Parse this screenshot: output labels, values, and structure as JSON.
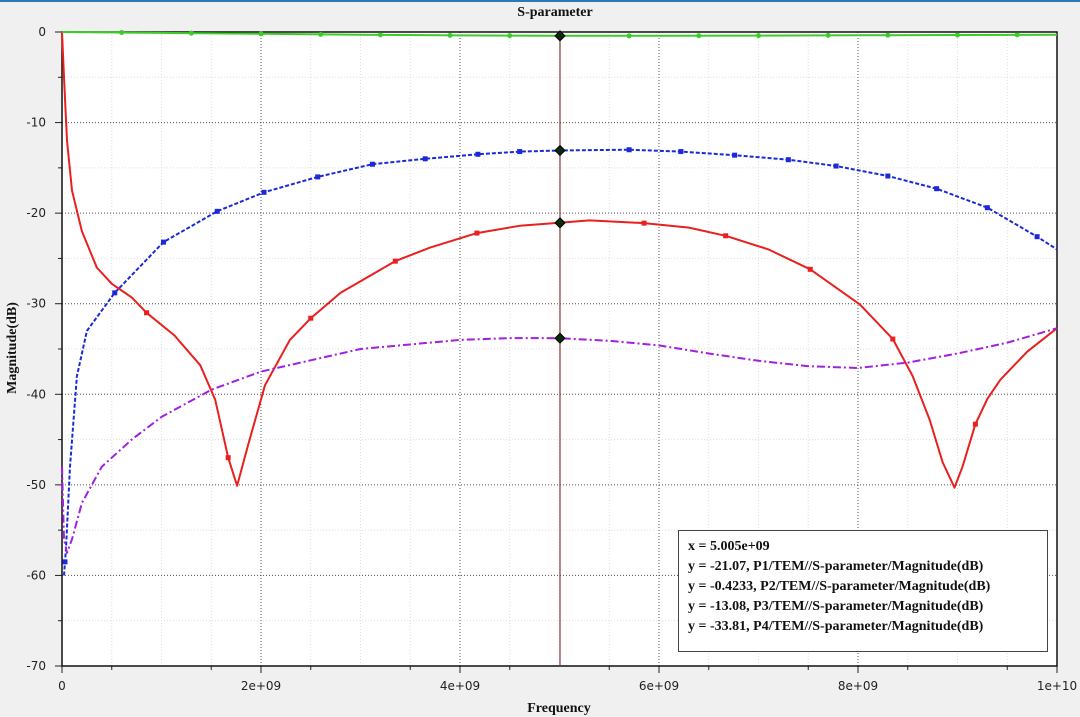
{
  "chart_data": {
    "type": "line",
    "title": "S-parameter",
    "xlabel": "Frequency",
    "ylabel": "Magnitude(dB)",
    "xlim": [
      0,
      10000000000
    ],
    "ylim": [
      -70,
      0
    ],
    "grid": true,
    "x_ticks": [
      {
        "v": 0,
        "label": "0"
      },
      {
        "v": 2000000000.0,
        "label": "2e+09"
      },
      {
        "v": 4000000000.0,
        "label": "4e+09"
      },
      {
        "v": 6000000000.0,
        "label": "6e+09"
      },
      {
        "v": 8000000000.0,
        "label": "8e+09"
      },
      {
        "v": 10000000000.0,
        "label": "1e+10"
      }
    ],
    "y_ticks": [
      {
        "v": 0,
        "label": "0"
      },
      {
        "v": -10,
        "label": "-10"
      },
      {
        "v": -20,
        "label": "-20"
      },
      {
        "v": -30,
        "label": "-30"
      },
      {
        "v": -40,
        "label": "-40"
      },
      {
        "v": -50,
        "label": "-50"
      },
      {
        "v": -60,
        "label": "-60"
      },
      {
        "v": -70,
        "label": "-70"
      }
    ],
    "x_unit_scale": 1000000000.0,
    "series": [
      {
        "name": "P1/TEM//S-parameter/Magnitude(dB)",
        "color": "#e8201e",
        "style": "solid",
        "marker": "square",
        "x": [
          0,
          0.02,
          0.05,
          0.1,
          0.2,
          0.35,
          0.5,
          0.7,
          0.85,
          1.13,
          1.39,
          1.54,
          1.67,
          1.76,
          1.87,
          2.04,
          2.29,
          2.5,
          2.8,
          3.05,
          3.35,
          3.7,
          4.17,
          4.6,
          5.0,
          5.3,
          5.85,
          6.3,
          6.67,
          7.1,
          7.52,
          8.02,
          8.35,
          8.55,
          8.72,
          8.85,
          8.97,
          9.05,
          9.18,
          9.3,
          9.43,
          9.7,
          10
        ],
        "y": [
          0,
          -5,
          -12,
          -17.5,
          -22,
          -26,
          -27.8,
          -29.3,
          -31,
          -33.5,
          -36.8,
          -40.6,
          -47,
          -50.1,
          -45.6,
          -39,
          -34,
          -31.6,
          -28.8,
          -27.2,
          -25.3,
          -23.8,
          -22.2,
          -21.4,
          -21.07,
          -20.8,
          -21.1,
          -21.6,
          -22.5,
          -24,
          -26.2,
          -30.1,
          -33.9,
          -38,
          -42.8,
          -47.5,
          -50.3,
          -48,
          -43.3,
          -40.5,
          -38.4,
          -35.3,
          -32.7
        ],
        "markers_at": [
          0.85,
          1.67,
          2.5,
          3.35,
          4.17,
          5.85,
          6.67,
          7.52,
          8.35,
          9.18
        ]
      },
      {
        "name": "P2/TEM//S-parameter/Magnitude(dB)",
        "color": "#3ccc2a",
        "style": "solid",
        "marker": "dot",
        "x": [
          0,
          1,
          2,
          3,
          4,
          5,
          6,
          7,
          8,
          9,
          10
        ],
        "y": [
          0,
          -0.1,
          -0.2,
          -0.3,
          -0.38,
          -0.4233,
          -0.42,
          -0.4,
          -0.36,
          -0.33,
          -0.3
        ],
        "markers_at": [
          0.6,
          1.3,
          2,
          2.6,
          3.2,
          3.9,
          4.5,
          5.7,
          6.4,
          7,
          7.7,
          8.3,
          9,
          9.6
        ]
      },
      {
        "name": "P3/TEM//S-parameter/Magnitude(dB)",
        "color": "#1a2ad8",
        "style": "dashed",
        "marker": "square",
        "x": [
          0.02,
          0.04,
          0.08,
          0.15,
          0.25,
          0.53,
          1.02,
          1.56,
          2.03,
          2.57,
          3.12,
          3.65,
          4.18,
          4.6,
          5.0,
          5.7,
          6.22,
          6.76,
          7.3,
          7.78,
          8.3,
          8.79,
          9.3,
          9.8,
          10
        ],
        "y": [
          -60,
          -57,
          -48,
          -38,
          -33,
          -28.8,
          -23.2,
          -19.8,
          -17.7,
          -16,
          -14.6,
          -14,
          -13.5,
          -13.2,
          -13.08,
          -13,
          -13.2,
          -13.6,
          -14.1,
          -14.8,
          -15.9,
          -17.3,
          -19.4,
          -22.6,
          -24
        ],
        "markers_at": [
          0.03,
          0.53,
          1.02,
          1.56,
          2.03,
          2.57,
          3.12,
          3.65,
          4.18,
          4.6,
          5.7,
          6.22,
          6.76,
          7.3,
          7.78,
          8.3,
          8.79,
          9.3,
          9.8
        ]
      },
      {
        "name": "P4/TEM//S-parameter/Magnitude(dB)",
        "color": "#a020e0",
        "style": "dashdot",
        "marker": "none",
        "x": [
          0,
          0.02,
          0.05,
          0.1,
          0.2,
          0.4,
          0.7,
          1.0,
          1.5,
          2.0,
          3.0,
          4.0,
          4.5,
          5.0,
          5.5,
          6.0,
          6.5,
          7.0,
          7.5,
          8.0,
          8.5,
          9.0,
          9.5,
          10
        ],
        "y": [
          -48,
          -56,
          -57.5,
          -56,
          -52,
          -48,
          -45,
          -42.5,
          -39.5,
          -37.5,
          -35,
          -34,
          -33.8,
          -33.81,
          -34.1,
          -34.6,
          -35.5,
          -36.3,
          -36.9,
          -37.1,
          -36.5,
          -35.5,
          -34.3,
          -32.7
        ],
        "markers_at": []
      }
    ],
    "cursor": {
      "x": 5005000000.0,
      "color": "#8b3a3a",
      "readout": {
        "x_line": "x = 5.005e+09",
        "lines": [
          "y = -21.07, P1/TEM//S-parameter/Magnitude(dB)",
          "y = -0.4233, P2/TEM//S-parameter/Magnitude(dB)",
          "y = -13.08, P3/TEM//S-parameter/Magnitude(dB)",
          "y = -33.81, P4/TEM//S-parameter/Magnitude(dB)"
        ],
        "values": [
          -21.07,
          -0.4233,
          -13.08,
          -33.81
        ]
      }
    },
    "legend_placement": "bottom-right"
  }
}
